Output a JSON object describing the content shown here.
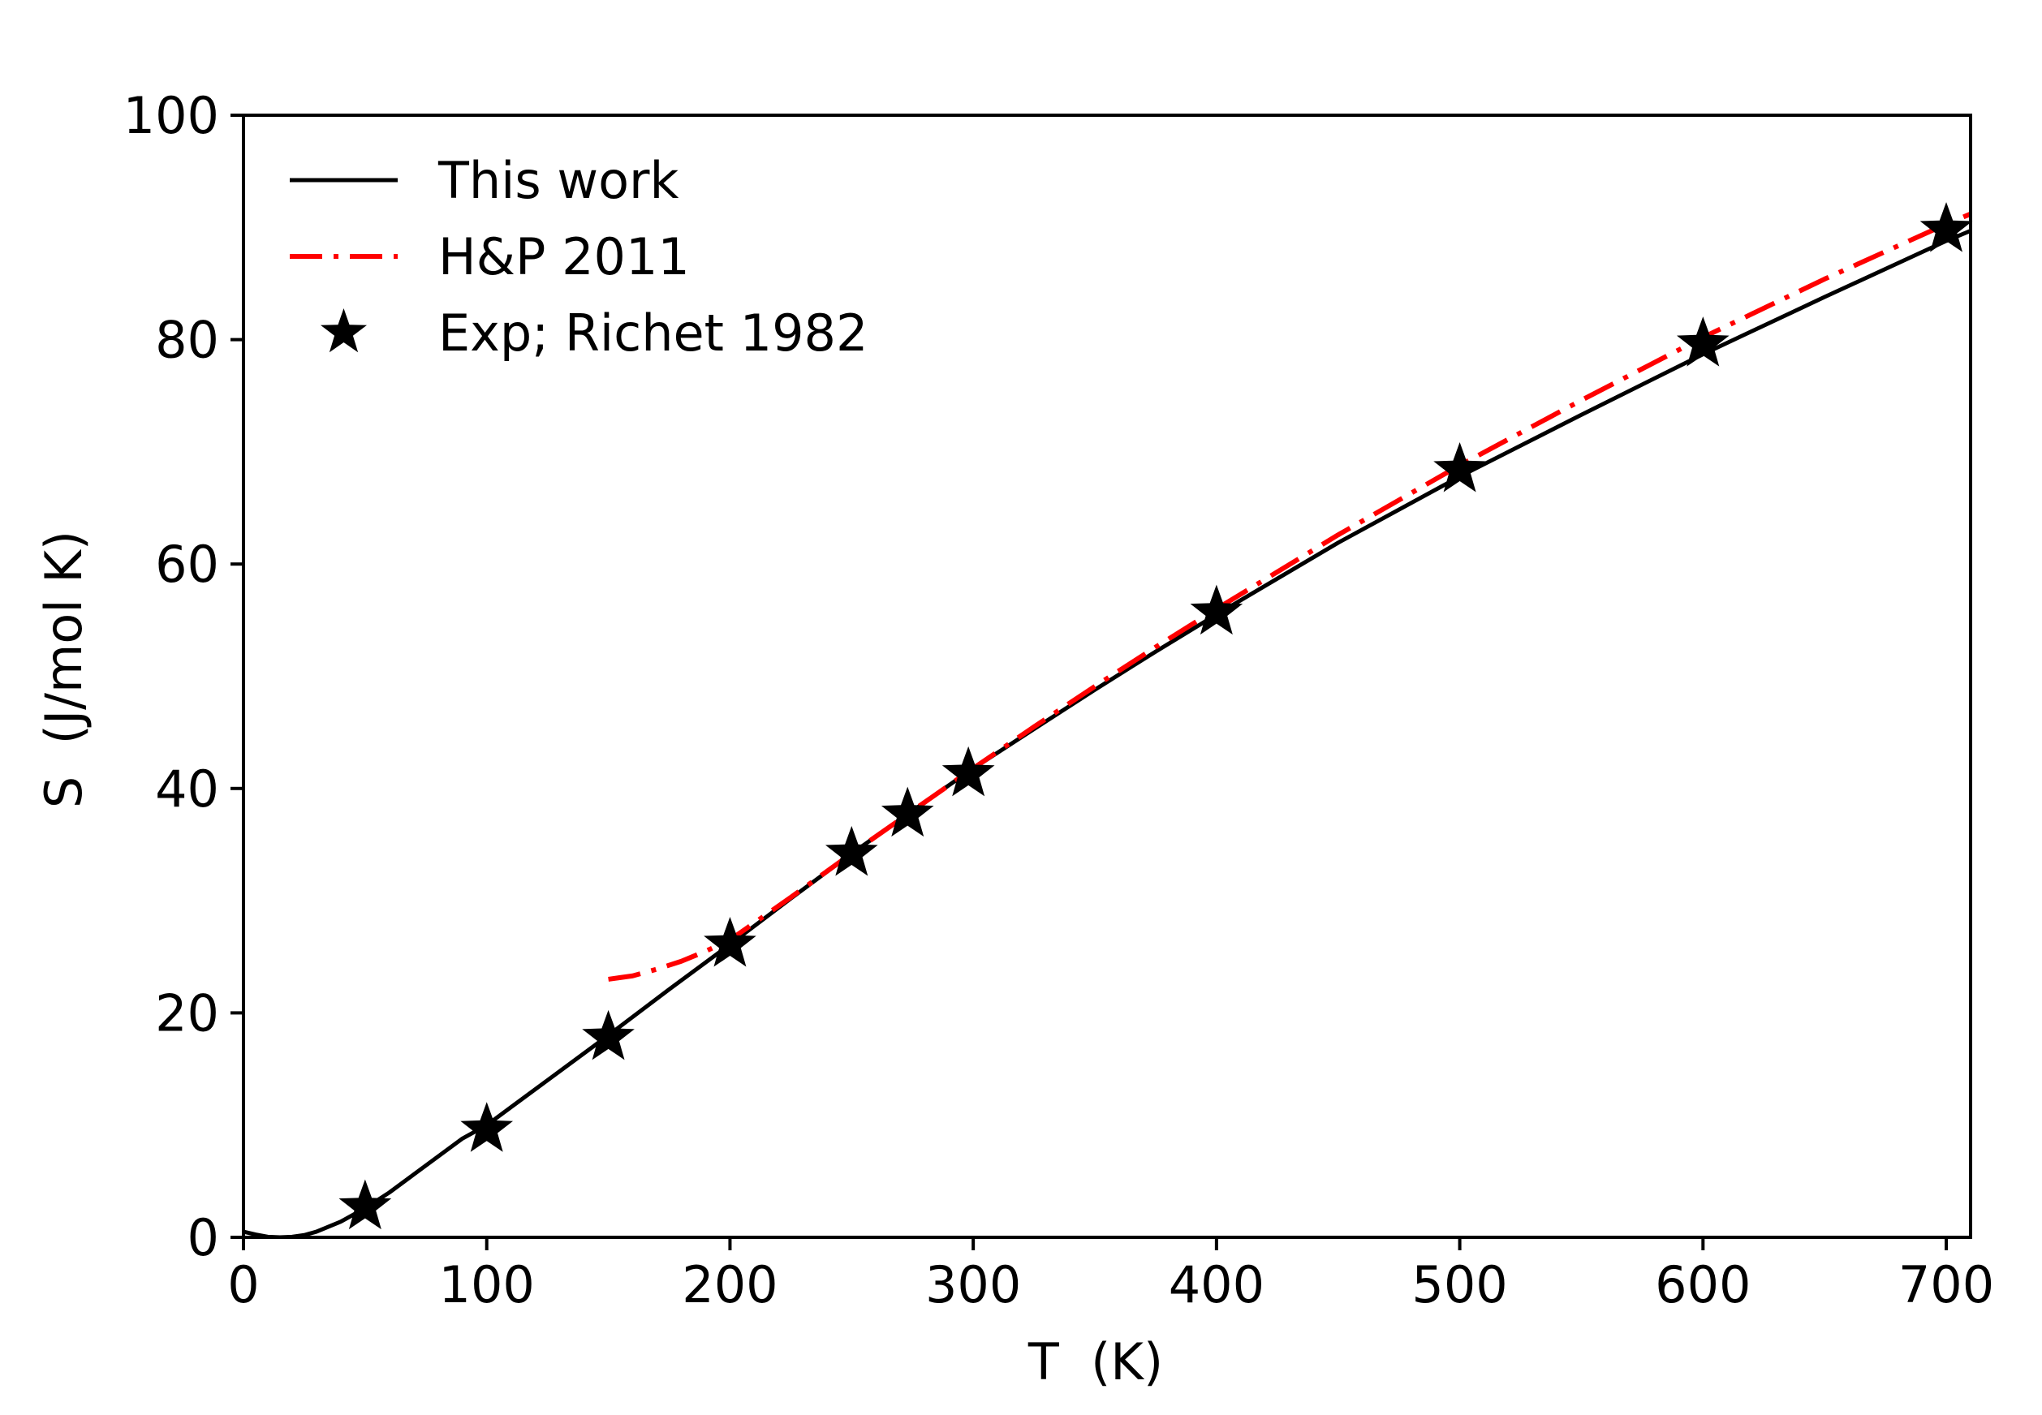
{
  "chart_data": {
    "type": "line",
    "title": "",
    "xlabel": "T  (K)",
    "ylabel": "S  (J/mol K)",
    "xlim": [
      0,
      710
    ],
    "ylim": [
      0,
      100
    ],
    "xticks": [
      0,
      100,
      200,
      300,
      400,
      500,
      600,
      700
    ],
    "yticks": [
      0,
      20,
      40,
      60,
      80,
      100
    ],
    "grid": false,
    "legend_position": "top-left",
    "series": [
      {
        "name": "This work",
        "kind": "line",
        "style": "solid",
        "color": "#000000",
        "x": [
          0,
          5,
          10,
          15,
          20,
          25,
          30,
          40,
          50,
          60,
          70,
          80,
          90,
          100,
          125,
          150,
          175,
          200,
          225,
          250,
          273,
          298,
          325,
          350,
          375,
          400,
          450,
          500,
          550,
          600,
          650,
          700,
          710
        ],
        "y": [
          0.5,
          0.25,
          0.05,
          0,
          0.05,
          0.2,
          0.5,
          1.4,
          2.6,
          4.0,
          5.6,
          7.2,
          8.8,
          10.0,
          14.0,
          18.0,
          22.1,
          26.1,
          30.2,
          34.2,
          37.7,
          41.5,
          45.3,
          48.8,
          52.2,
          55.5,
          61.9,
          67.8,
          73.3,
          78.7,
          83.8,
          88.8,
          89.7
        ]
      },
      {
        "name": "H&P 2011",
        "kind": "line",
        "style": "dash-dot",
        "color": "#ff0000",
        "x": [
          150,
          160,
          170,
          180,
          190,
          200,
          225,
          250,
          273,
          298,
          325,
          350,
          375,
          400,
          450,
          500,
          550,
          600,
          650,
          700,
          710
        ],
        "y": [
          23.0,
          23.3,
          23.9,
          24.6,
          25.5,
          26.5,
          30.3,
          34.2,
          37.7,
          41.5,
          45.5,
          49.1,
          52.6,
          56.0,
          62.6,
          68.8,
          74.6,
          80.2,
          85.4,
          90.3,
          91.2
        ]
      },
      {
        "name": "Exp; Richet 1982",
        "kind": "scatter",
        "marker": "star",
        "color": "#000000",
        "x": [
          50,
          100,
          150,
          200,
          250,
          273,
          298,
          400,
          500,
          600,
          700
        ],
        "y": [
          2.7,
          9.6,
          17.8,
          26.1,
          34.2,
          37.7,
          41.3,
          55.7,
          68.4,
          79.6,
          89.8
        ]
      }
    ]
  }
}
